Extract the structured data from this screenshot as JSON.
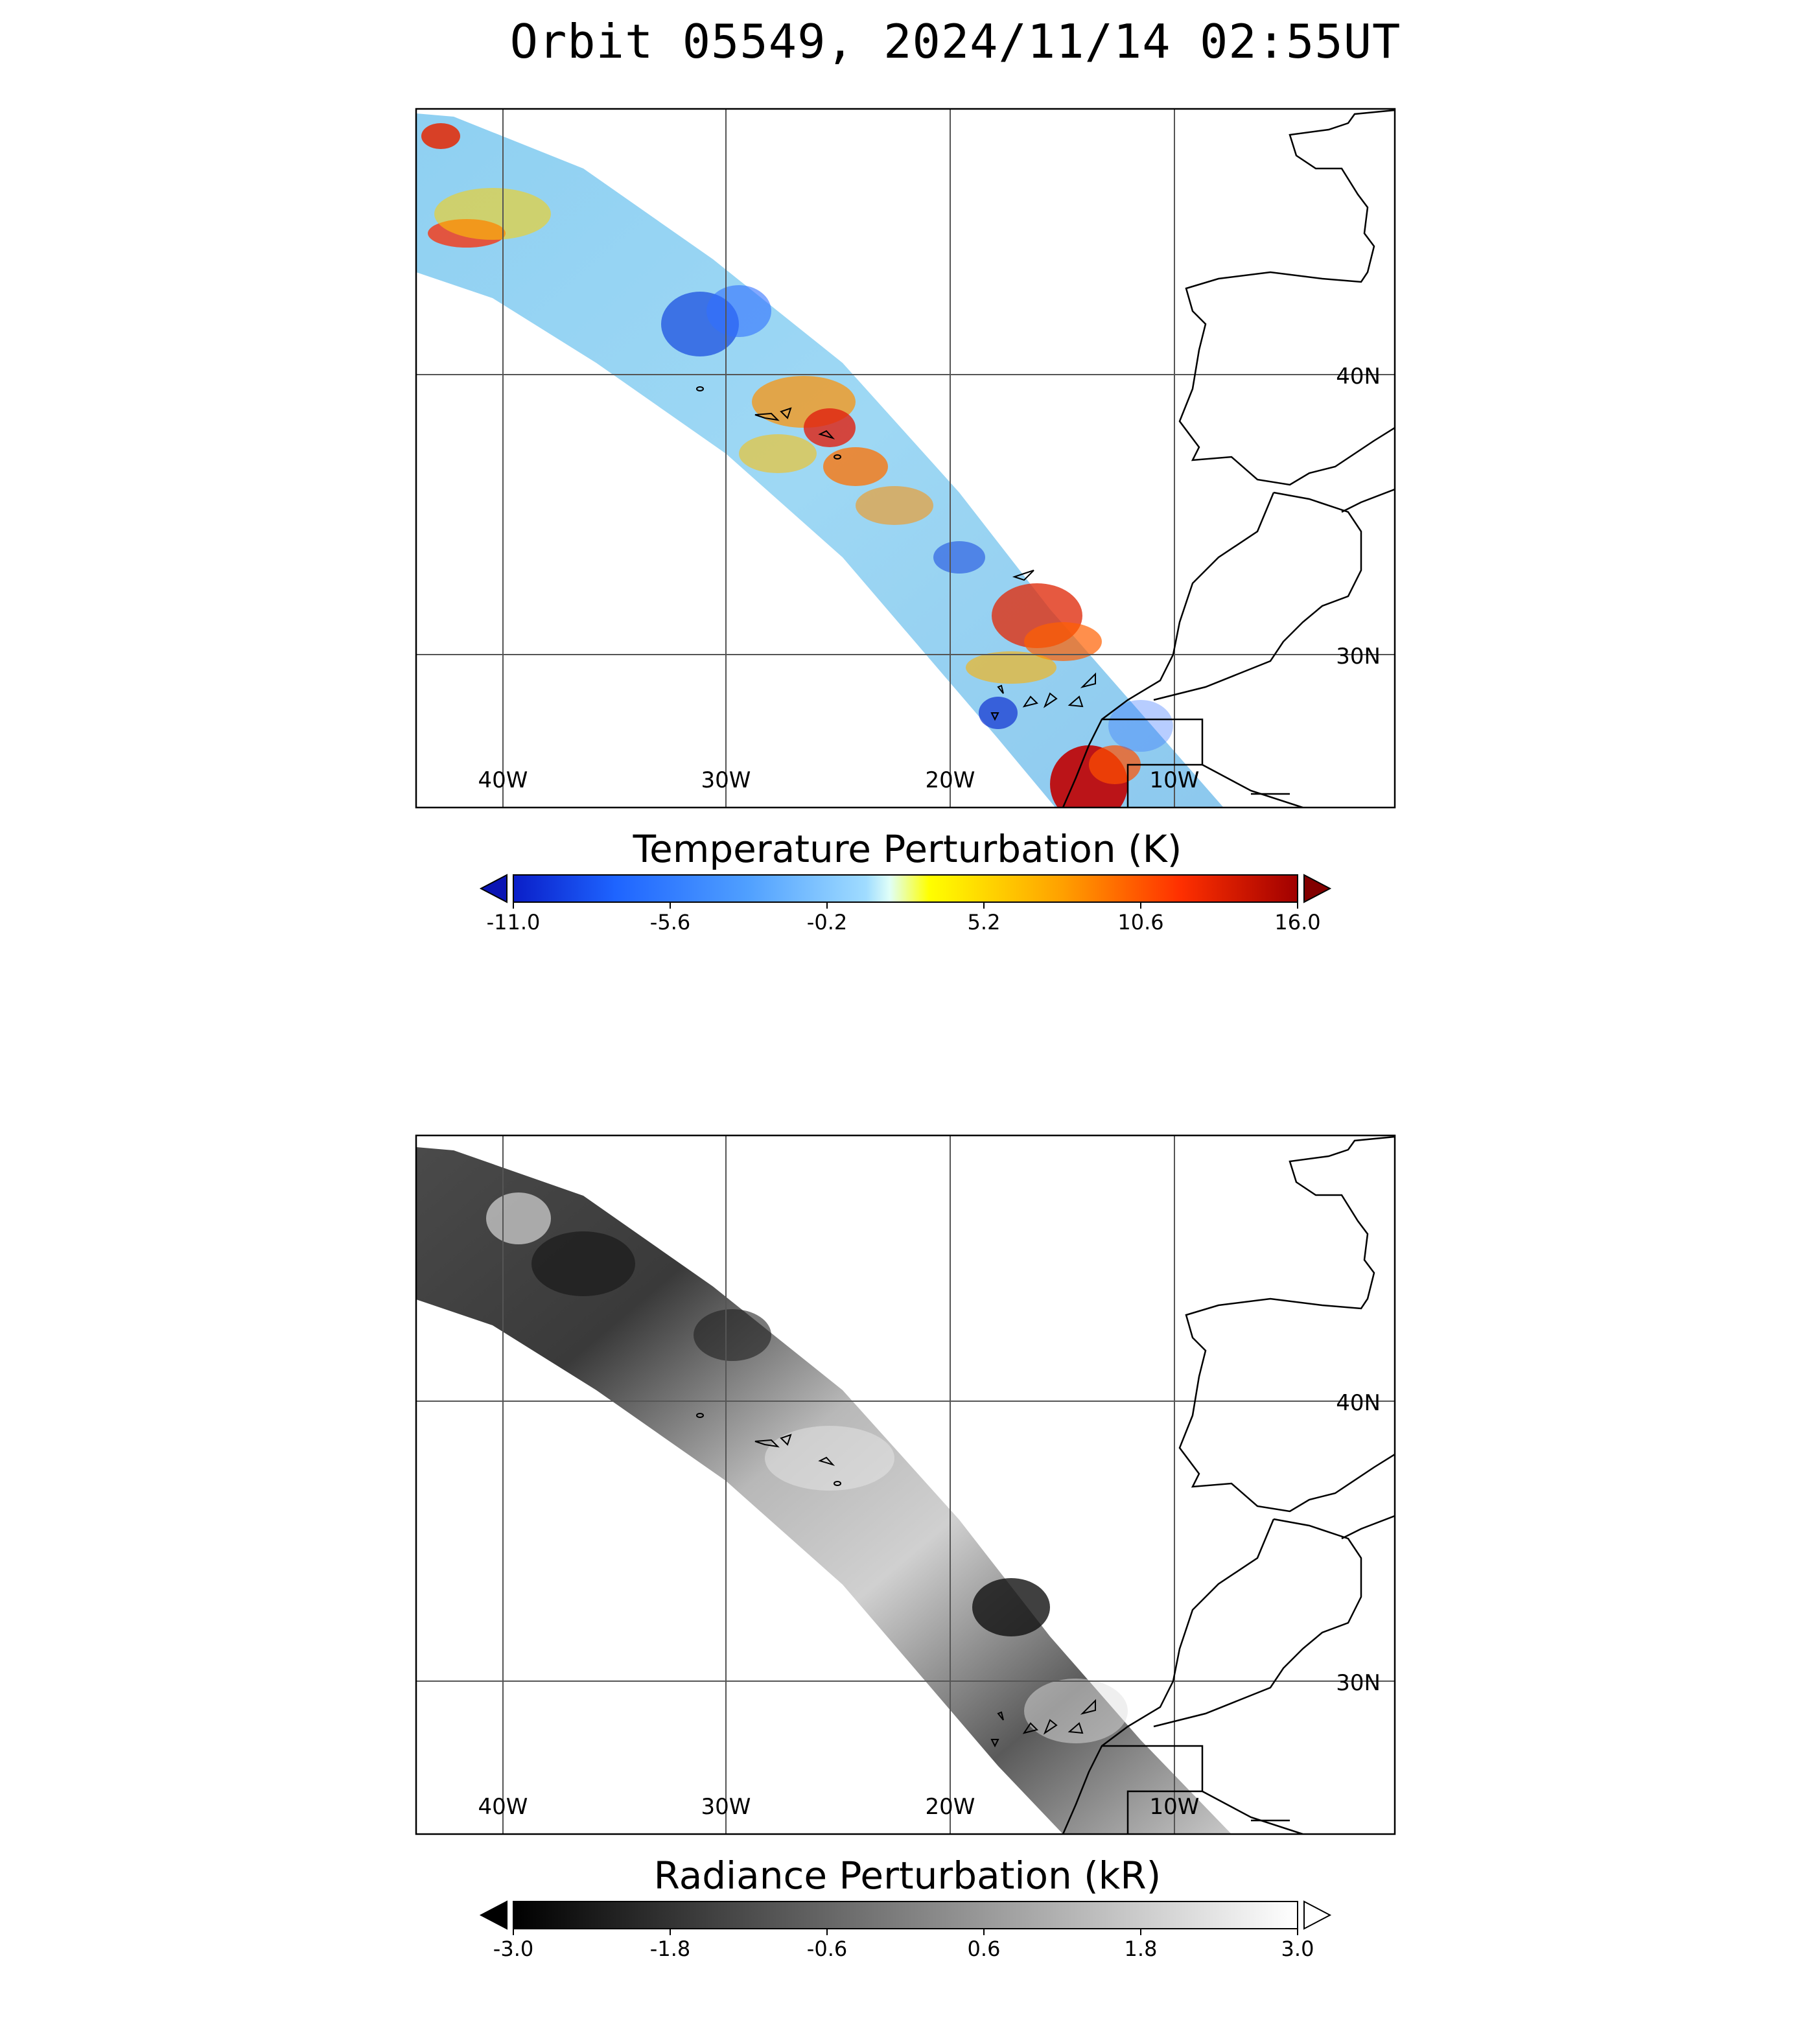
{
  "title": "Orbit 05549, 2024/11/14 02:55UT",
  "maps": [
    {
      "id": "temperature",
      "colorbar": {
        "title": "Temperature Perturbation (K)",
        "ticks": [
          "-11.0",
          "-5.6",
          "-0.2",
          "5.2",
          "10.6",
          "16.0"
        ],
        "colors": [
          "#0a1ec8",
          "#1e64ff",
          "#50a0ff",
          "#a0dcff",
          "#e0fff8",
          "#ffff00",
          "#ffa000",
          "#ff3000",
          "#a00000"
        ],
        "under_color": "#0a14b4",
        "over_color": "#820000"
      }
    },
    {
      "id": "radiance",
      "colorbar": {
        "title": "Radiance Perturbation (kR)",
        "ticks": [
          "-3.0",
          "-1.8",
          "-0.6",
          "0.6",
          "1.8",
          "3.0"
        ],
        "colors": [
          "#000000",
          "#ffffff"
        ],
        "under_color": "#000000",
        "over_color": "#ffffff"
      }
    }
  ],
  "lon_labels": [
    "40W",
    "30W",
    "20W",
    "10W"
  ],
  "lat_labels": [
    "40N",
    "30N"
  ]
}
